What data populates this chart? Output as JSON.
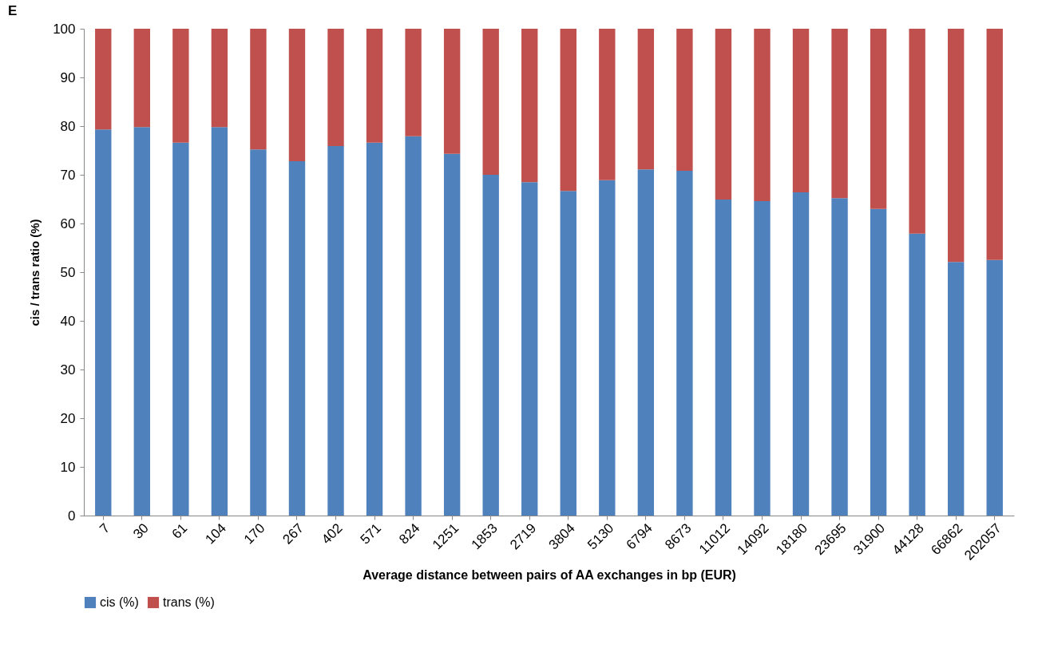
{
  "chart_data": {
    "type": "bar",
    "title": "E",
    "xlabel": "Average distance between pairs of AA exchanges in bp (EUR)",
    "ylabel": "cis / trans ratio (%)",
    "categories": [
      "7",
      "30",
      "61",
      "104",
      "170",
      "267",
      "402",
      "571",
      "824",
      "1251",
      "1853",
      "2719",
      "3804",
      "5130",
      "6794",
      "8673",
      "11012",
      "14092",
      "18180",
      "23695",
      "31900",
      "44128",
      "66862",
      "202057"
    ],
    "stacked": true,
    "ylim": [
      0,
      100
    ],
    "yticks": [
      0,
      10,
      20,
      30,
      40,
      50,
      60,
      70,
      80,
      90,
      100
    ],
    "grid": false,
    "legend": "bottom",
    "series": [
      {
        "name": "cis (%)",
        "color": "#4f81bd",
        "values": [
          79.3,
          79.8,
          76.6,
          79.8,
          75.2,
          72.8,
          75.9,
          76.6,
          77.9,
          74.3,
          70.0,
          68.5,
          66.7,
          68.9,
          71.1,
          70.8,
          64.9,
          64.6,
          66.4,
          65.2,
          63.0,
          57.9,
          52.1,
          52.5
        ]
      },
      {
        "name": "trans (%)",
        "color": "#c0504d",
        "values": [
          20.7,
          20.2,
          23.4,
          20.2,
          24.8,
          27.2,
          24.1,
          23.4,
          22.1,
          25.7,
          30.0,
          31.5,
          33.3,
          31.1,
          28.9,
          29.2,
          35.1,
          35.4,
          33.6,
          34.8,
          37.0,
          42.1,
          47.9,
          47.5
        ]
      }
    ]
  }
}
